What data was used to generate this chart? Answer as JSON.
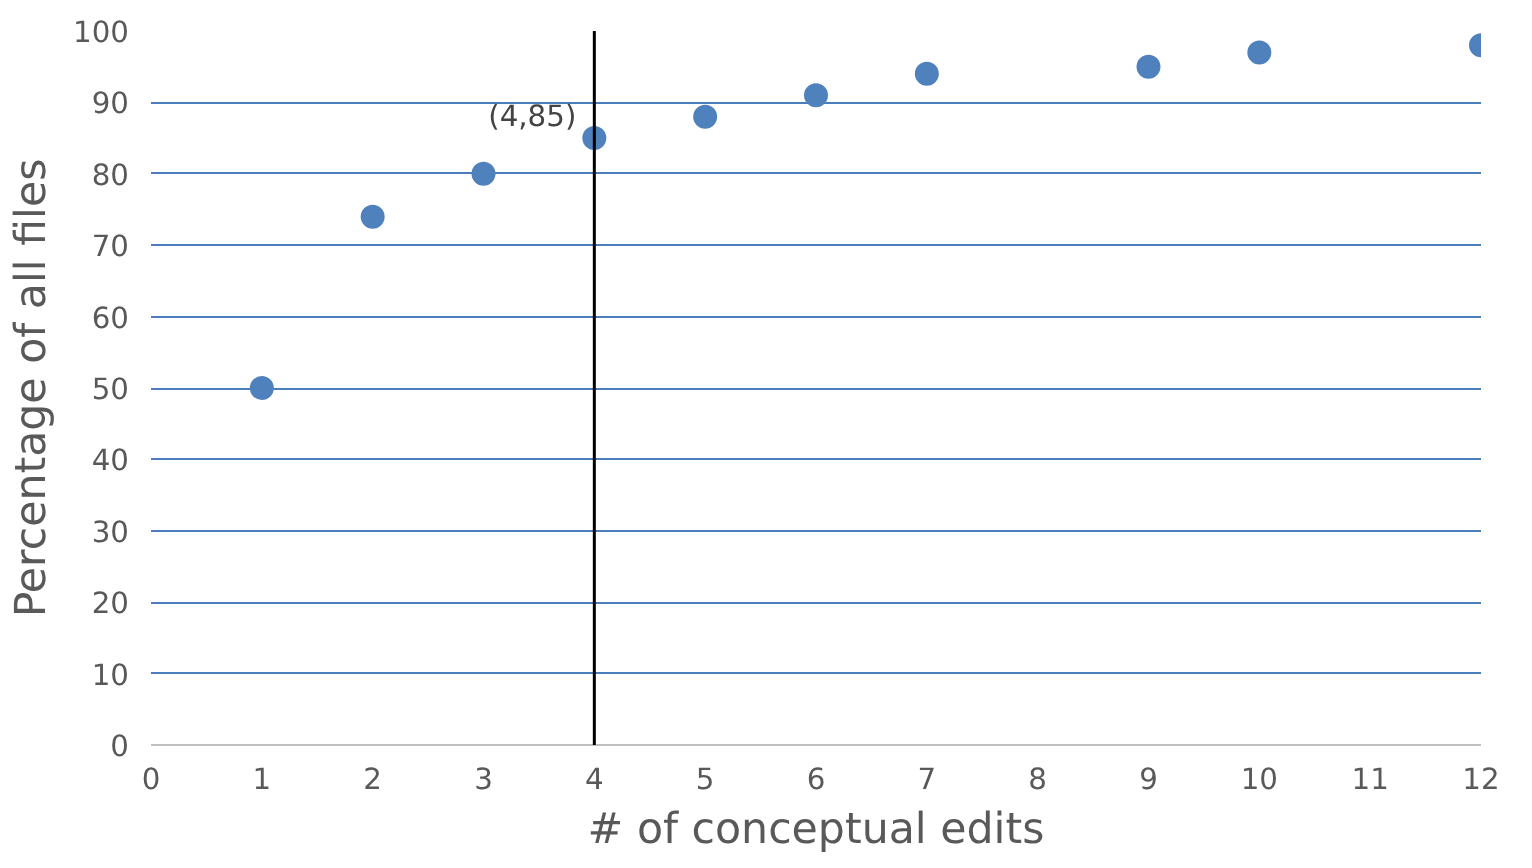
{
  "chart_data": {
    "type": "scatter",
    "xlabel": "# of conceptual edits",
    "ylabel": "Percentage of all files",
    "x": [
      1,
      2,
      3,
      4,
      5,
      6,
      7,
      9,
      10,
      12
    ],
    "series": [
      {
        "color": "#4f81bd",
        "values": [
          50,
          74,
          80,
          85,
          88,
          91,
          94,
          95,
          97,
          98
        ]
      }
    ],
    "xlim": [
      0,
      12
    ],
    "xticks": [
      0,
      1,
      2,
      3,
      4,
      5,
      6,
      7,
      8,
      9,
      10,
      11,
      12
    ],
    "ylim": [
      0,
      100
    ],
    "yticks": [
      0,
      10,
      20,
      30,
      40,
      50,
      60,
      70,
      80,
      90,
      100
    ],
    "grid": "y",
    "marker": "circle",
    "ref_lines": [
      {
        "axis": "x",
        "value": 4,
        "color": "#000000"
      }
    ],
    "annotations": [
      {
        "text": "(4,85)",
        "x": 4,
        "y": 85
      }
    ]
  }
}
